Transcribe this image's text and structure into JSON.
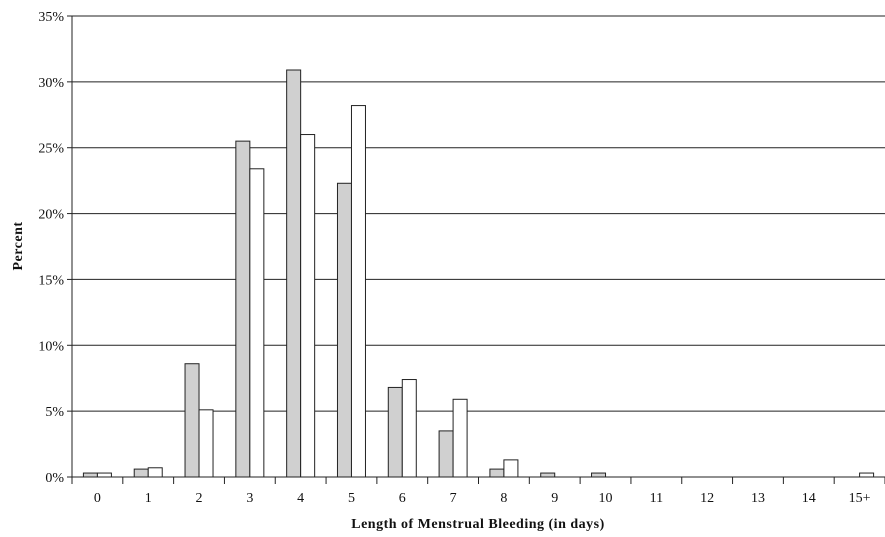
{
  "chart_data": {
    "type": "bar",
    "title": "",
    "xlabel": "Length of Menstrual Bleeding (in days)",
    "ylabel": "Percent",
    "ylim": [
      0,
      35
    ],
    "y_ticks": [
      "0%",
      "5%",
      "10%",
      "15%",
      "20%",
      "25%",
      "30%",
      "35%"
    ],
    "grid": true,
    "legend": "none",
    "categories": [
      "0",
      "1",
      "2",
      "3",
      "4",
      "5",
      "6",
      "7",
      "8",
      "9",
      "10",
      "11",
      "12",
      "13",
      "14",
      "15+"
    ],
    "series": [
      {
        "color": "#d0d0d0",
        "values": [
          0.3,
          0.6,
          8.6,
          25.5,
          30.9,
          22.3,
          6.8,
          3.5,
          0.6,
          0.3,
          0.3,
          0,
          0,
          0,
          0,
          0
        ]
      },
      {
        "color": "#ffffff",
        "values": [
          0.3,
          0.7,
          5.1,
          23.4,
          26.0,
          28.2,
          7.4,
          5.9,
          1.3,
          0,
          0,
          0,
          0,
          0,
          0,
          0.3
        ]
      }
    ]
  }
}
